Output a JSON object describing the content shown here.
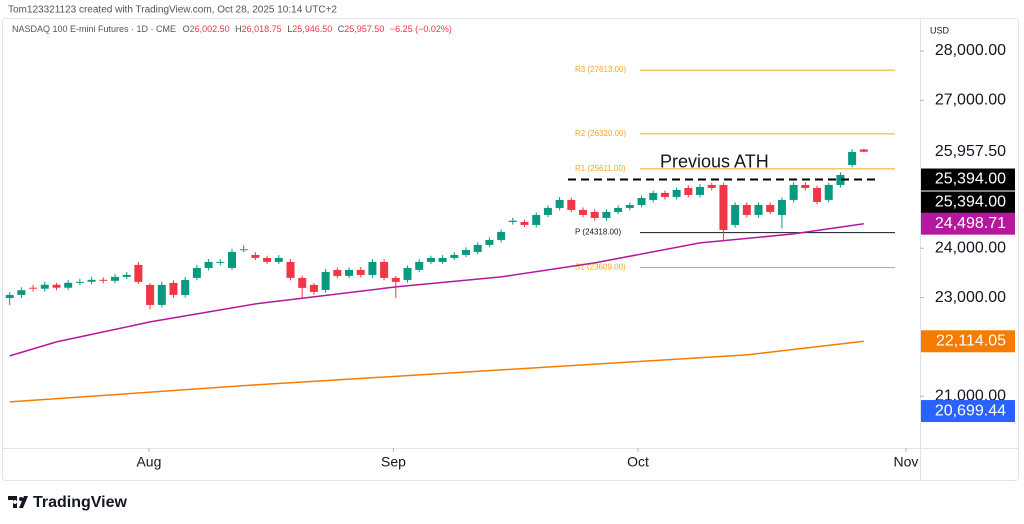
{
  "chart_data": {
    "type": "candlestick",
    "attribution": "Tom123321123 created with TradingView.com, Oct 28, 2025 10:14 UTC+2",
    "symbol": "NASDAQ 100 E-mini Futures · 1D · CME",
    "legend": {
      "open_key": "O",
      "open": "26,002.50",
      "high_key": "H",
      "high": "26,018.75",
      "low_key": "L",
      "low": "25,946.50",
      "close_key": "C",
      "close": "25,957.50",
      "change": "−6.25 (−0.02%)"
    },
    "currency": "USD",
    "brand": "TradingView",
    "up_color": "#089981",
    "down_color": "#f23645",
    "categories": [
      null,
      null,
      null,
      null,
      null,
      null,
      null,
      null,
      null,
      null,
      null,
      null,
      null,
      null,
      null,
      null,
      null,
      null,
      null,
      null,
      null,
      null,
      null,
      null,
      null,
      null,
      null,
      null,
      null,
      null,
      null,
      null,
      null,
      null,
      null,
      null,
      null,
      null,
      null,
      null,
      null,
      null,
      null,
      null,
      null,
      null,
      null,
      null,
      null,
      null,
      null,
      null,
      null,
      null,
      null,
      null,
      null,
      null,
      null,
      null,
      null,
      null,
      null,
      null,
      null,
      null,
      null,
      null,
      null,
      null,
      null,
      null,
      null,
      null
    ],
    "open": [
      22990,
      23054,
      23200,
      23180,
      23260,
      23200,
      23300,
      23320,
      23360,
      23340,
      23420,
      23662,
      23257,
      22851,
      23297,
      23054,
      23399,
      23601,
      23703,
      23601,
      23966,
      23865,
      23804,
      23723,
      23723,
      23399,
      23257,
      23155,
      23561,
      23439,
      23561,
      23459,
      23723,
      23399,
      23358,
      23561,
      23723,
      23723,
      23804,
      23865,
      23926,
      24068,
      24169,
      24534,
      24534,
      24473,
      24676,
      24818,
      24980,
      24777,
      24737,
      24615,
      24737,
      24818,
      24878,
      24980,
      25122,
      25041,
      25223,
      25081,
      25284,
      25284,
      24473,
      24878,
      24676,
      24878,
      24676,
      24980,
      25284,
      25223,
      24980,
      25284,
      25689,
      26002.5
    ],
    "high": [
      23110,
      23210,
      23260,
      23320,
      23300,
      23360,
      23380,
      23420,
      23410,
      23480,
      23520,
      23720,
      23300,
      23320,
      23350,
      23420,
      23660,
      23780,
      23780,
      23990,
      24060,
      23920,
      23850,
      23860,
      23780,
      23450,
      23300,
      23580,
      23610,
      23610,
      23620,
      23780,
      23780,
      23440,
      23650,
      23780,
      23850,
      23860,
      23920,
      24020,
      24120,
      24220,
      24380,
      24620,
      24580,
      24730,
      24870,
      25040,
      25030,
      24830,
      24790,
      24790,
      24870,
      24930,
      25070,
      25170,
      25170,
      25230,
      25280,
      25300,
      25330,
      25330,
      24930,
      24930,
      24930,
      24930,
      25030,
      25340,
      25340,
      25270,
      25330,
      25540,
      26010,
      26018.75
    ],
    "low": [
      22850,
      22990,
      23120,
      23120,
      23150,
      23150,
      23250,
      23270,
      23290,
      23290,
      23380,
      23280,
      22760,
      22800,
      23000,
      23000,
      23350,
      23550,
      23650,
      23560,
      23920,
      23760,
      23680,
      23680,
      23350,
      23000,
      23060,
      23100,
      23390,
      23390,
      23410,
      23400,
      23350,
      22990,
      23300,
      23520,
      23680,
      23680,
      23760,
      23820,
      23880,
      24020,
      24120,
      24480,
      24430,
      24420,
      24630,
      24770,
      24730,
      24630,
      24560,
      24560,
      24690,
      24770,
      24830,
      24930,
      24990,
      24990,
      25030,
      25030,
      25170,
      24130,
      24420,
      24620,
      24620,
      24690,
      24400,
      24930,
      25170,
      24890,
      24930,
      25230,
      25640,
      25946.5
    ],
    "close": [
      23054,
      23150,
      23180,
      23260,
      23200,
      23300,
      23320,
      23360,
      23340,
      23420,
      23460,
      23318,
      22851,
      23257,
      23054,
      23358,
      23601,
      23723,
      23723,
      23926,
      23980,
      23804,
      23723,
      23804,
      23399,
      23196,
      23115,
      23520,
      23439,
      23561,
      23459,
      23723,
      23399,
      23318,
      23601,
      23723,
      23804,
      23804,
      23865,
      23966,
      24068,
      24169,
      24331,
      24560,
      24473,
      24676,
      24818,
      24980,
      24777,
      24676,
      24615,
      24737,
      24818,
      24878,
      25020,
      25122,
      25041,
      25182,
      25081,
      25243,
      25223,
      24372,
      24878,
      24676,
      24878,
      24737,
      24980,
      25284,
      25223,
      24939,
      25284,
      25486,
      25953,
      25957.5
    ],
    "indicators": [
      {
        "color": "#b5179e",
        "x": [
          0,
          4,
          12,
          21,
          33,
          42,
          50,
          59,
          67,
          73
        ],
        "values": [
          21818,
          22101,
          22507,
          22871,
          23216,
          23419,
          23703,
          24108,
          24291,
          24498.71
        ]
      },
      {
        "color": "#f57c00",
        "x": [
          0,
          21,
          42,
          63,
          73
        ],
        "values": [
          20885,
          21230,
          21534,
          21838,
          22114.05
        ]
      }
    ],
    "pivots": [
      {
        "label": "R3 (27613.00)",
        "value": 27613,
        "color": "#f5a623"
      },
      {
        "label": "R2 (26320.00)",
        "value": 26320,
        "color": "#f5a623"
      },
      {
        "label": "R1 (25611.00)",
        "value": 25611,
        "color": "#f5a623"
      },
      {
        "label": "P (24318.00)",
        "value": 24318,
        "color": "#131722"
      },
      {
        "label": "S1 (23609.00)",
        "value": 23609,
        "color": "#f5a623"
      }
    ],
    "ath": {
      "label": "Previous ATH",
      "value": 25394,
      "value_labels": [
        "25,394.00",
        "25,394.00"
      ],
      "color": "#000000"
    },
    "price_labels": [
      {
        "value": 25957.5,
        "label": "25,957.50",
        "color": "#ffffff",
        "text_color": "#131722"
      },
      {
        "value": 24498.71,
        "label": "24,498.71",
        "color": "#b5179e",
        "text_color": "#ffffff"
      },
      {
        "value": 22114.05,
        "label": "22,114.05",
        "color": "#f57c00",
        "text_color": "#ffffff"
      },
      {
        "value": 20699.44,
        "label": "20,699.44",
        "color": "#2962ff",
        "text_color": "#ffffff"
      }
    ],
    "xlim": [
      -0.4,
      77.8
    ],
    "xticks": [
      {
        "value": 11.9,
        "label": "Aug"
      },
      {
        "value": 32.8,
        "label": "Sep"
      },
      {
        "value": 53.7,
        "label": "Oct"
      },
      {
        "value": 76.6,
        "label": "Nov"
      }
    ],
    "ylim": [
      19950,
      28730
    ],
    "yticks": [
      {
        "value": 21000,
        "label": "21,000.00"
      },
      {
        "value": 23000,
        "label": "23,000.00"
      },
      {
        "value": 24000,
        "label": "24,000.00"
      },
      {
        "value": 27000,
        "label": "27,000.00"
      },
      {
        "value": 28000,
        "label": "28,000.00"
      }
    ]
  }
}
